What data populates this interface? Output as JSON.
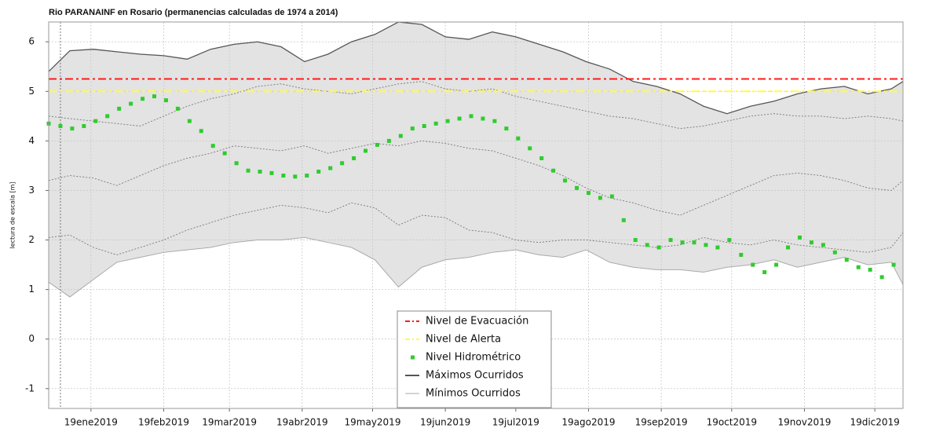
{
  "chart_data": {
    "type": "line",
    "title": "Rio PARANAINF en Rosario (permanencias calculadas de 1974 a 2014)",
    "y_label": "lectura de escala [m]",
    "xlim": [
      "2019-01-01",
      "2019-12-31"
    ],
    "xticks": [
      {
        "value": "2019-01-19",
        "label": "19ene2019"
      },
      {
        "value": "2019-02-19",
        "label": "19feb2019"
      },
      {
        "value": "2019-03-19",
        "label": "19mar2019"
      },
      {
        "value": "2019-04-19",
        "label": "19abr2019"
      },
      {
        "value": "2019-05-19",
        "label": "19may2019"
      },
      {
        "value": "2019-06-19",
        "label": "19jun2019"
      },
      {
        "value": "2019-07-19",
        "label": "19jul2019"
      },
      {
        "value": "2019-08-19",
        "label": "19ago2019"
      },
      {
        "value": "2019-09-19",
        "label": "19sep2019"
      },
      {
        "value": "2019-10-19",
        "label": "19oct2019"
      },
      {
        "value": "2019-11-19",
        "label": "19nov2019"
      },
      {
        "value": "2019-12-19",
        "label": "19dic2019"
      }
    ],
    "ylim": [
      -1.4,
      6.4
    ],
    "yticks": [
      -1,
      0,
      1,
      2,
      3,
      4,
      5,
      6
    ],
    "grid": true,
    "legend": "bottom",
    "marker_x": "2019-01-06",
    "band_color": "#e3e3e3",
    "x": [
      "2019-01-01",
      "2019-01-10",
      "2019-01-20",
      "2019-01-30",
      "2019-02-09",
      "2019-02-19",
      "2019-03-01",
      "2019-03-11",
      "2019-03-21",
      "2019-03-31",
      "2019-04-10",
      "2019-04-20",
      "2019-04-30",
      "2019-05-10",
      "2019-05-20",
      "2019-05-30",
      "2019-06-09",
      "2019-06-19",
      "2019-06-29",
      "2019-07-09",
      "2019-07-19",
      "2019-07-29",
      "2019-08-08",
      "2019-08-18",
      "2019-08-28",
      "2019-09-07",
      "2019-09-17",
      "2019-09-27",
      "2019-10-07",
      "2019-10-17",
      "2019-10-27",
      "2019-11-06",
      "2019-11-16",
      "2019-11-26",
      "2019-12-06",
      "2019-12-16",
      "2019-12-26",
      "2019-12-31"
    ],
    "reference_lines": [
      {
        "name": "Nivel de Evacuación",
        "value": 5.25,
        "color": "#ff1a1a"
      },
      {
        "name": "Nivel de Alerta",
        "value": 5.0,
        "color": "#ffff33"
      }
    ],
    "observed": {
      "name": "Nivel Hidrométrico",
      "color": "#2ecc2e",
      "x": [
        "2019-01-01",
        "2019-01-06",
        "2019-01-11",
        "2019-01-16",
        "2019-01-21",
        "2019-01-26",
        "2019-01-31",
        "2019-02-05",
        "2019-02-10",
        "2019-02-15",
        "2019-02-20",
        "2019-02-25",
        "2019-03-02",
        "2019-03-07",
        "2019-03-12",
        "2019-03-17",
        "2019-03-22",
        "2019-03-27",
        "2019-04-01",
        "2019-04-06",
        "2019-04-11",
        "2019-04-16",
        "2019-04-21",
        "2019-04-26",
        "2019-05-01",
        "2019-05-06",
        "2019-05-11",
        "2019-05-16",
        "2019-05-21",
        "2019-05-26",
        "2019-05-31",
        "2019-06-05",
        "2019-06-10",
        "2019-06-15",
        "2019-06-20",
        "2019-06-25",
        "2019-06-30",
        "2019-07-05",
        "2019-07-10",
        "2019-07-15",
        "2019-07-20",
        "2019-07-25",
        "2019-07-30",
        "2019-08-04",
        "2019-08-09",
        "2019-08-14",
        "2019-08-19",
        "2019-08-24",
        "2019-08-29",
        "2019-09-03",
        "2019-09-08",
        "2019-09-13",
        "2019-09-18",
        "2019-09-23",
        "2019-09-28",
        "2019-10-03",
        "2019-10-08",
        "2019-10-13",
        "2019-10-18",
        "2019-10-23",
        "2019-10-28",
        "2019-11-02",
        "2019-11-07",
        "2019-11-12",
        "2019-11-17",
        "2019-11-22",
        "2019-11-27",
        "2019-12-02",
        "2019-12-07",
        "2019-12-12",
        "2019-12-17",
        "2019-12-22",
        "2019-12-27"
      ],
      "values": [
        4.35,
        4.3,
        4.25,
        4.3,
        4.4,
        4.5,
        4.65,
        4.75,
        4.85,
        4.9,
        4.82,
        4.65,
        4.4,
        4.2,
        3.9,
        3.75,
        3.55,
        3.4,
        3.38,
        3.35,
        3.3,
        3.28,
        3.3,
        3.38,
        3.45,
        3.55,
        3.65,
        3.8,
        3.92,
        4.0,
        4.1,
        4.25,
        4.3,
        4.35,
        4.4,
        4.45,
        4.5,
        4.45,
        4.4,
        4.25,
        4.05,
        3.85,
        3.65,
        3.4,
        3.2,
        3.05,
        2.95,
        2.85,
        2.88,
        2.4,
        2.0,
        1.9,
        1.85,
        2.0,
        1.95,
        1.95,
        1.9,
        1.85,
        2.0,
        1.7,
        1.5,
        1.35,
        1.5,
        1.85,
        2.05,
        1.95,
        1.9,
        1.75,
        1.6,
        1.45,
        1.4,
        1.25,
        1.5
      ]
    },
    "series": [
      {
        "name": "Máximos Ocurridos",
        "color": "#555555",
        "values": [
          5.4,
          5.82,
          5.85,
          5.8,
          5.75,
          5.72,
          5.65,
          5.85,
          5.95,
          6.0,
          5.9,
          5.6,
          5.75,
          6.0,
          6.15,
          6.4,
          6.35,
          6.1,
          6.05,
          6.2,
          6.1,
          5.95,
          5.8,
          5.6,
          5.45,
          5.2,
          5.1,
          4.95,
          4.7,
          4.55,
          4.7,
          4.8,
          4.95,
          5.05,
          5.1,
          4.95,
          5.05,
          5.2
        ]
      },
      {
        "name": "Mínimos Ocurridos",
        "color": "#aaaaaa",
        "values": [
          1.15,
          0.85,
          1.2,
          1.55,
          1.65,
          1.75,
          1.8,
          1.85,
          1.95,
          2.0,
          2.0,
          2.05,
          1.95,
          1.85,
          1.6,
          1.05,
          1.45,
          1.6,
          1.65,
          1.75,
          1.8,
          1.7,
          1.65,
          1.8,
          1.55,
          1.45,
          1.4,
          1.4,
          1.35,
          1.45,
          1.5,
          1.6,
          1.45,
          1.55,
          1.65,
          1.5,
          1.55,
          1.1
        ]
      }
    ],
    "percentiles": [
      {
        "color": "#777777",
        "values": [
          4.5,
          4.45,
          4.4,
          4.35,
          4.3,
          4.5,
          4.7,
          4.85,
          4.95,
          5.1,
          5.15,
          5.05,
          5.0,
          4.95,
          5.05,
          5.15,
          5.2,
          5.05,
          5.0,
          5.05,
          4.9,
          4.8,
          4.7,
          4.6,
          4.5,
          4.45,
          4.35,
          4.25,
          4.3,
          4.4,
          4.5,
          4.55,
          4.5,
          4.5,
          4.45,
          4.5,
          4.45,
          4.4
        ]
      },
      {
        "color": "#777777",
        "values": [
          3.2,
          3.3,
          3.25,
          3.1,
          3.3,
          3.5,
          3.65,
          3.75,
          3.9,
          3.85,
          3.8,
          3.9,
          3.75,
          3.85,
          3.95,
          3.9,
          4.0,
          3.95,
          3.85,
          3.8,
          3.65,
          3.5,
          3.3,
          3.05,
          2.85,
          2.75,
          2.6,
          2.5,
          2.7,
          2.9,
          3.1,
          3.3,
          3.35,
          3.3,
          3.2,
          3.05,
          3.0,
          3.2
        ]
      },
      {
        "color": "#777777",
        "values": [
          2.05,
          2.1,
          1.85,
          1.7,
          1.85,
          2.0,
          2.2,
          2.35,
          2.5,
          2.6,
          2.7,
          2.65,
          2.55,
          2.75,
          2.65,
          2.3,
          2.5,
          2.45,
          2.2,
          2.15,
          2.0,
          1.95,
          2.0,
          2.0,
          1.95,
          1.9,
          1.85,
          1.9,
          2.05,
          1.95,
          1.9,
          2.0,
          1.9,
          1.85,
          1.8,
          1.75,
          1.85,
          2.15
        ]
      }
    ]
  }
}
